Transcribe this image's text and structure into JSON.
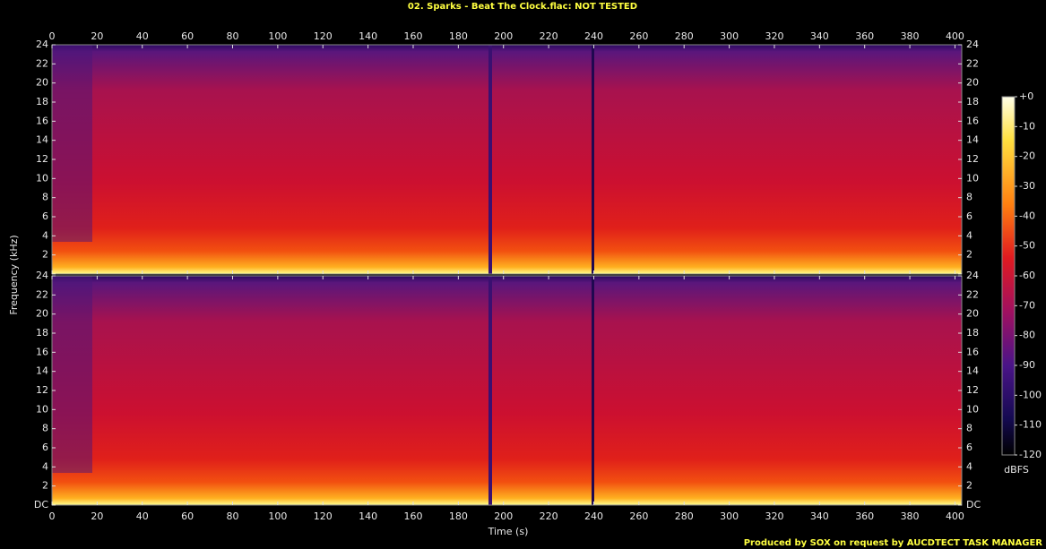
{
  "chart_data": {
    "type": "spectrogram",
    "title": "02. Sparks - Beat The Clock.flac: NOT TESTED",
    "xlabel": "Time (s)",
    "ylabel": "Frequency (kHz)",
    "colorbar_label": "dBFS",
    "footer": "Produced by SOX on request by AUCDTECT TASK MANAGER",
    "xlim": [
      0,
      403
    ],
    "xticks": [
      0,
      20,
      40,
      60,
      80,
      100,
      120,
      140,
      160,
      180,
      200,
      220,
      240,
      260,
      280,
      300,
      320,
      340,
      360,
      380,
      400
    ],
    "ylim": [
      0,
      24
    ],
    "yticks": [
      {
        "value": 0,
        "label": "DC"
      },
      2,
      4,
      6,
      8,
      10,
      12,
      14,
      16,
      18,
      20,
      22,
      24
    ],
    "clim": [
      -120,
      0
    ],
    "cticks": [
      {
        "value": 0,
        "label": "+0"
      },
      -10,
      -20,
      -30,
      -40,
      -50,
      -60,
      -70,
      -80,
      -90,
      -100,
      -110,
      -120
    ]
  }
}
